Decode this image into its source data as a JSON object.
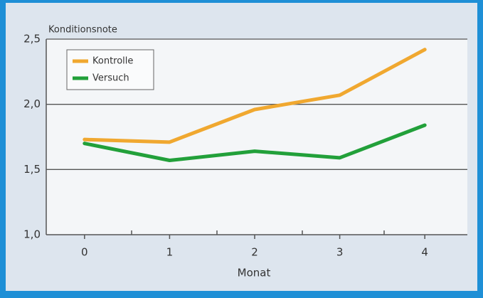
{
  "chart_data": {
    "type": "line",
    "y_label": "Konditionsnote",
    "x_label": "Monat",
    "x": [
      0,
      1,
      2,
      3,
      4
    ],
    "xlim": [
      -0.45,
      4.5
    ],
    "xticks": [
      0,
      1,
      2,
      3,
      4
    ],
    "ylim": [
      1.0,
      2.5
    ],
    "yticks": [
      {
        "value": 1.0,
        "label": "1,0"
      },
      {
        "value": 1.5,
        "label": "1,5"
      },
      {
        "value": 2.0,
        "label": "2,0"
      },
      {
        "value": 2.5,
        "label": "2,5"
      }
    ],
    "grid": true,
    "legend": "upper left",
    "series": [
      {
        "name": "Kontrolle",
        "color": "#f0a830",
        "values": [
          1.73,
          1.71,
          1.96,
          2.07,
          2.42
        ]
      },
      {
        "name": "Versuch",
        "color": "#22a03a",
        "values": [
          1.7,
          1.57,
          1.64,
          1.59,
          1.84
        ]
      }
    ]
  }
}
